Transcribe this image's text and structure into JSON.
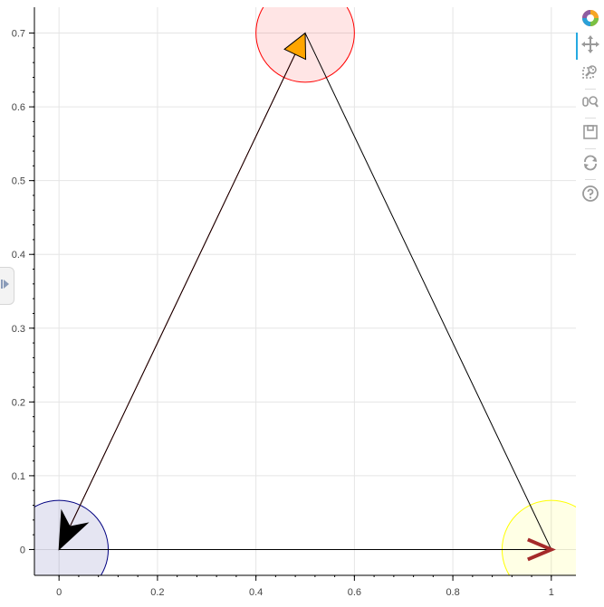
{
  "chart_data": {
    "type": "scatter",
    "title": "",
    "xlabel": "",
    "ylabel": "",
    "xlim": [
      -0.05,
      1.05
    ],
    "ylim": [
      -0.035,
      0.735
    ],
    "grid": true,
    "x_ticks": [
      {
        "value": 0,
        "label": "0"
      },
      {
        "value": 0.2,
        "label": "0.2"
      },
      {
        "value": 0.4,
        "label": "0.4"
      },
      {
        "value": 0.6,
        "label": "0.6"
      },
      {
        "value": 0.8,
        "label": "0.8"
      },
      {
        "value": 1,
        "label": "1"
      }
    ],
    "y_ticks": [
      {
        "value": 0,
        "label": "0"
      },
      {
        "value": 0.1,
        "label": "0.1"
      },
      {
        "value": 0.2,
        "label": "0.2"
      },
      {
        "value": 0.3,
        "label": "0.3"
      },
      {
        "value": 0.4,
        "label": "0.4"
      },
      {
        "value": 0.5,
        "label": "0.5"
      },
      {
        "value": 0.6,
        "label": "0.6"
      },
      {
        "value": 0.7,
        "label": "0.7"
      }
    ],
    "circles": [
      {
        "x": 0,
        "y": 0,
        "radius": 0.1,
        "fill": "#000080",
        "fill_alpha": 0.1,
        "line": "#000080"
      },
      {
        "x": 0.5,
        "y": 0.7,
        "radius": 0.1,
        "fill": "#ff0000",
        "fill_alpha": 0.1,
        "line": "#ff0000"
      },
      {
        "x": 1,
        "y": 0,
        "radius": 0.1,
        "fill": "#ffff00",
        "fill_alpha": 0.1,
        "line": "#ffff00"
      }
    ],
    "arrows": [
      {
        "x_start": 0,
        "y_start": 0,
        "x_end": 0.5,
        "y_end": 0.7,
        "line_color": "#ff0000",
        "head": "normal",
        "head_fill": "#ffa500",
        "head_line": "#000000"
      },
      {
        "x_start": 0.5,
        "y_start": 0.7,
        "x_end": 0,
        "y_end": 0,
        "line_color": "#000000",
        "head": "vee",
        "head_fill": "#000000",
        "head_line": "#000000"
      },
      {
        "x_start": 0,
        "y_start": 0,
        "x_end": 1,
        "y_end": 0,
        "line_color": "#000000",
        "head": "open",
        "head_fill": "none",
        "head_line": "#a52a2a"
      },
      {
        "x_start": 1,
        "y_start": 0,
        "x_end": 0.5,
        "y_end": 0.7,
        "line_color": "#000000",
        "head": "none",
        "head_fill": "none",
        "head_line": "#000000"
      }
    ]
  },
  "toolbar": {
    "logo_icon": "bokeh-logo-icon",
    "tools": [
      {
        "name": "pan-tool-button",
        "icon": "pan-icon",
        "active": true
      },
      {
        "name": "box-zoom-tool-button",
        "icon": "box-zoom-icon",
        "active": false
      },
      {
        "name": "wheel-zoom-tool-button",
        "icon": "wheel-zoom-icon",
        "active": false
      },
      {
        "name": "save-tool-button",
        "icon": "save-icon",
        "active": false
      },
      {
        "name": "reset-tool-button",
        "icon": "reset-icon",
        "active": false
      },
      {
        "name": "help-tool-button",
        "icon": "help-icon",
        "active": false
      }
    ]
  }
}
